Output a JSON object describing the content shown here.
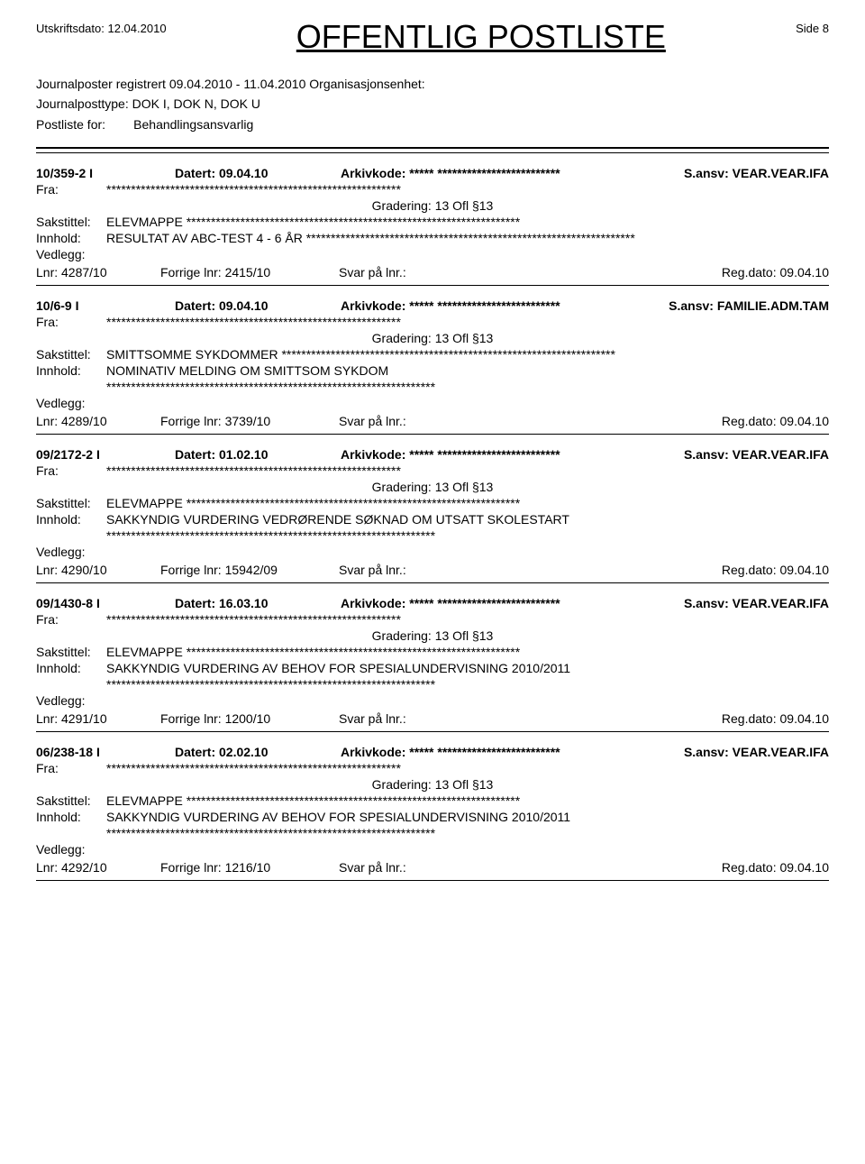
{
  "header": {
    "print_date_label": "Utskriftsdato:",
    "print_date_value": "12.04.2010",
    "title": "OFFENTLIG POSTLISTE",
    "page_label": "Side",
    "page_number": "8"
  },
  "subheader": {
    "registered_label": "Journalposter registrert",
    "registered_range": "09.04.2010 - 11.04.2010",
    "org_label": "Organisasjonsenhet:",
    "posttype_label": "Journalposttype:",
    "posttype_value": "DOK I, DOK N, DOK U",
    "postliste_label": "Postliste for:",
    "postliste_value": "Behandlingsansvarlig"
  },
  "labels": {
    "datert": "Datert:",
    "arkivkode": "Arkivkode:",
    "sansv": "S.ansv:",
    "fra": "Fra:",
    "gradering": "Gradering:",
    "sakstittel": "Sakstittel:",
    "innhold": "Innhold:",
    "vedlegg": "Vedlegg:",
    "lnr": "Lnr:",
    "forrige_lnr": "Forrige lnr:",
    "svar": "Svar på lnr.:",
    "regdato": "Reg.dato:"
  },
  "entries": [
    {
      "id": "10/359-2  I",
      "datert": "09.04.10",
      "arkivkode": "***** *************************",
      "sansv": "VEAR.VEAR.IFA",
      "fra": "************************************************************",
      "gradering": "13 Ofl §13",
      "sakstittel": "ELEVMAPPE  ********************************************************************",
      "innhold": "RESULTAT AV ABC-TEST 4 - 6 ÅR  *******************************************************************",
      "innhold_extra": "",
      "lnr": "4287/10",
      "forrige": "2415/10",
      "svar": "",
      "regdato": "09.04.10"
    },
    {
      "id": "10/6-9  I",
      "datert": "09.04.10",
      "arkivkode": "***** *************************",
      "sansv": "FAMILIE.ADM.TAM",
      "fra": "************************************************************",
      "gradering": "13 Ofl §13",
      "sakstittel": "SMITTSOMME SYKDOMMER  ********************************************************************",
      "innhold": "NOMINATIV MELDING OM SMITTSOM SYKDOM",
      "innhold_extra": "*******************************************************************",
      "lnr": "4289/10",
      "forrige": "3739/10",
      "svar": "",
      "regdato": "09.04.10"
    },
    {
      "id": "09/2172-2  I",
      "datert": "01.02.10",
      "arkivkode": "***** *************************",
      "sansv": "VEAR.VEAR.IFA",
      "fra": "************************************************************",
      "gradering": "13 Ofl §13",
      "sakstittel": "ELEVMAPPE  ********************************************************************",
      "innhold": "SAKKYNDIG VURDERING VEDRØRENDE SØKNAD OM UTSATT SKOLESTART",
      "innhold_extra": "*******************************************************************",
      "lnr": "4290/10",
      "forrige": "15942/09",
      "svar": "",
      "regdato": "09.04.10"
    },
    {
      "id": "09/1430-8  I",
      "datert": "16.03.10",
      "arkivkode": "***** *************************",
      "sansv": "VEAR.VEAR.IFA",
      "fra": "************************************************************",
      "gradering": "13 Ofl §13",
      "sakstittel": "ELEVMAPPE  ********************************************************************",
      "innhold": "SAKKYNDIG VURDERING AV BEHOV FOR SPESIALUNDERVISNING 2010/2011",
      "innhold_extra": "*******************************************************************",
      "lnr": "4291/10",
      "forrige": "1200/10",
      "svar": "",
      "regdato": "09.04.10"
    },
    {
      "id": "06/238-18  I",
      "datert": "02.02.10",
      "arkivkode": "***** *************************",
      "sansv": "VEAR.VEAR.IFA",
      "fra": "************************************************************",
      "gradering": "13 Ofl §13",
      "sakstittel": "ELEVMAPPE  ********************************************************************",
      "innhold": "SAKKYNDIG VURDERING AV BEHOV FOR SPESIALUNDERVISNING 2010/2011",
      "innhold_extra": "*******************************************************************",
      "lnr": "4292/10",
      "forrige": "1216/10",
      "svar": "",
      "regdato": "09.04.10"
    }
  ]
}
